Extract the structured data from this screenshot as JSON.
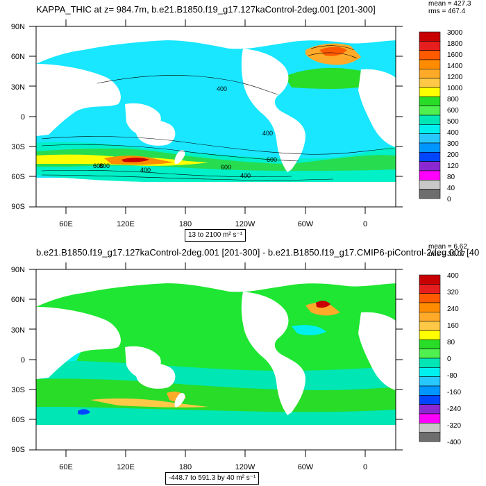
{
  "panels": [
    {
      "title": "KAPPA_THIC at z= 984.7m, b.e21.B1850.f19_g17.127kaControl-2deg.001 [201-300]",
      "stats_mean": "mean = 427.3",
      "stats_rms": "rms = 467.4",
      "range_label": "13 to 2100 m² s⁻¹",
      "colorbar_labels": [
        "3000",
        "1800",
        "1600",
        "1400",
        "1200",
        "1000",
        "800",
        "600",
        "500",
        "400",
        "300",
        "200",
        "120",
        "80",
        "40",
        "0"
      ],
      "colorbar_colors": [
        "#c80000",
        "#e61e1e",
        "#ff5a00",
        "#ff8c00",
        "#ffaa28",
        "#ffc846",
        "#ffff00",
        "#28dc28",
        "#50f050",
        "#00e6b4",
        "#00f0f0",
        "#28c8ff",
        "#0096ff",
        "#0046ff",
        "#8c28d2",
        "#ff00ff",
        "#c8c8c8",
        "#6e6e6e"
      ],
      "contour_labels": [
        "400",
        "400",
        "600",
        "600",
        "400",
        "400",
        "600",
        "800"
      ]
    },
    {
      "title": "b.e21.B1850.f19_g17.127kaControl-2deg.001 [201-300] - b.e21.B1850.f19_g17.CMIP6-piControl-2deg.001 [40",
      "stats_mean": "mean = 6.62",
      "stats_rms": "rms = 39.07",
      "range_label": "-448.7 to 591.3 by 40 m² s⁻¹",
      "colorbar_labels": [
        "400",
        "320",
        "240",
        "160",
        "80",
        "0",
        "-80",
        "-160",
        "-240",
        "-320",
        "-400"
      ],
      "colorbar_colors": [
        "#c80000",
        "#e61e1e",
        "#ff5a00",
        "#ff8c00",
        "#ffaa28",
        "#ffc846",
        "#ffff00",
        "#28dc28",
        "#50f050",
        "#00e6b4",
        "#00f0f0",
        "#28c8ff",
        "#0096ff",
        "#0046ff",
        "#8c28d2",
        "#ff00ff",
        "#c8c8c8",
        "#6e6e6e"
      ]
    }
  ],
  "axes": {
    "lat_labels": [
      "90N",
      "60N",
      "30N",
      "0",
      "30S",
      "60S",
      "90S"
    ],
    "lon_labels": [
      "60E",
      "120E",
      "180",
      "120W",
      "60W",
      "0"
    ]
  },
  "colors": {
    "ocean_top": "#19e6ff",
    "ocean_bottom": "#1ee632",
    "land": "#ffffff",
    "sea_ice_top": "#32c8ff",
    "sea_ice_bottom": "#00ffc8"
  }
}
